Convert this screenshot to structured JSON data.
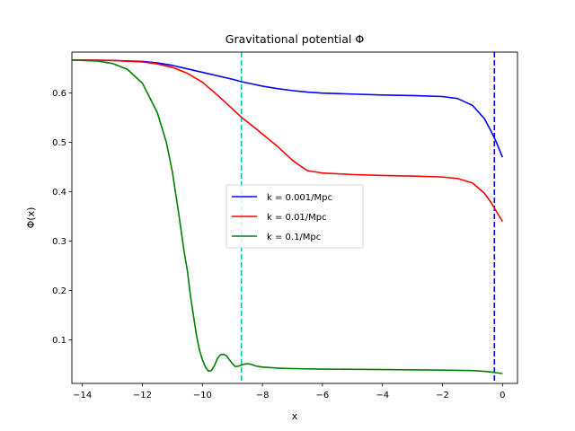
{
  "chart_data": {
    "type": "line",
    "title": "Gravitational potential Φ",
    "xlabel": "x",
    "ylabel": "Φ(x)",
    "xlim": [
      -14.35,
      0.5
    ],
    "ylim": [
      0.012,
      0.683
    ],
    "xticks": [
      -14,
      -12,
      -10,
      -8,
      -6,
      -4,
      -2,
      0
    ],
    "xtick_labels": [
      "−14",
      "−12",
      "−10",
      "−8",
      "−6",
      "−4",
      "−2",
      "0"
    ],
    "yticks": [
      0.1,
      0.2,
      0.3,
      0.4,
      0.5,
      0.6
    ],
    "ytick_labels": [
      "0.1",
      "0.2",
      "0.3",
      "0.4",
      "0.5",
      "0.6"
    ],
    "grid": false,
    "legend_position": "center",
    "series": [
      {
        "name": "k = 0.001/Mpc",
        "color": "#0000ff",
        "x": [
          -14.35,
          -13,
          -12,
          -11.5,
          -11,
          -10.5,
          -10,
          -9.5,
          -9,
          -8.7,
          -8.3,
          -8,
          -7.5,
          -7,
          -6.5,
          -6,
          -5,
          -4,
          -3,
          -2,
          -1.5,
          -1,
          -0.6,
          -0.4,
          -0.2,
          0
        ],
        "y": [
          0.667,
          0.666,
          0.664,
          0.661,
          0.656,
          0.649,
          0.642,
          0.635,
          0.628,
          0.623,
          0.618,
          0.614,
          0.609,
          0.605,
          0.602,
          0.6,
          0.598,
          0.596,
          0.595,
          0.593,
          0.589,
          0.575,
          0.548,
          0.525,
          0.5,
          0.47
        ]
      },
      {
        "name": "k = 0.01/Mpc",
        "color": "#ff0000",
        "x": [
          -14.35,
          -13,
          -12,
          -11.5,
          -11,
          -10.5,
          -10,
          -9.5,
          -9,
          -8.7,
          -8.3,
          -8,
          -7.5,
          -7,
          -6.8,
          -6.5,
          -6,
          -5,
          -4,
          -3,
          -2,
          -1.5,
          -1,
          -0.6,
          -0.4,
          -0.2,
          0
        ],
        "y": [
          0.667,
          0.666,
          0.663,
          0.659,
          0.652,
          0.64,
          0.622,
          0.596,
          0.568,
          0.551,
          0.532,
          0.517,
          0.492,
          0.464,
          0.455,
          0.443,
          0.438,
          0.435,
          0.433,
          0.432,
          0.43,
          0.427,
          0.418,
          0.397,
          0.38,
          0.36,
          0.34
        ]
      },
      {
        "name": "k = 0.1/Mpc",
        "color": "#008000",
        "x": [
          -14.35,
          -13.5,
          -13,
          -12.5,
          -12,
          -11.5,
          -11.2,
          -11,
          -10.8,
          -10.6,
          -10.5,
          -10.4,
          -10.3,
          -10.2,
          -10.1,
          -10,
          -9.9,
          -9.8,
          -9.7,
          -9.6,
          -9.5,
          -9.4,
          -9.3,
          -9.2,
          -9.1,
          -9,
          -8.9,
          -8.8,
          -8.7,
          -8.6,
          -8.5,
          -8.4,
          -8.3,
          -8.2,
          -8.1,
          -8,
          -7.5,
          -7,
          -6,
          -4,
          -2,
          -1,
          -0.5,
          0
        ],
        "y": [
          0.667,
          0.665,
          0.66,
          0.648,
          0.62,
          0.56,
          0.5,
          0.44,
          0.36,
          0.275,
          0.24,
          0.19,
          0.15,
          0.11,
          0.08,
          0.06,
          0.045,
          0.037,
          0.038,
          0.048,
          0.062,
          0.07,
          0.071,
          0.068,
          0.06,
          0.052,
          0.046,
          0.047,
          0.049,
          0.051,
          0.052,
          0.051,
          0.049,
          0.047,
          0.046,
          0.045,
          0.043,
          0.042,
          0.041,
          0.04,
          0.039,
          0.038,
          0.036,
          0.032
        ]
      }
    ],
    "vlines": [
      {
        "x": -8.7,
        "color": "#00bfbf",
        "style": "dashed"
      },
      {
        "x": -0.27,
        "color": "#0000ff",
        "style": "dashed"
      }
    ]
  }
}
